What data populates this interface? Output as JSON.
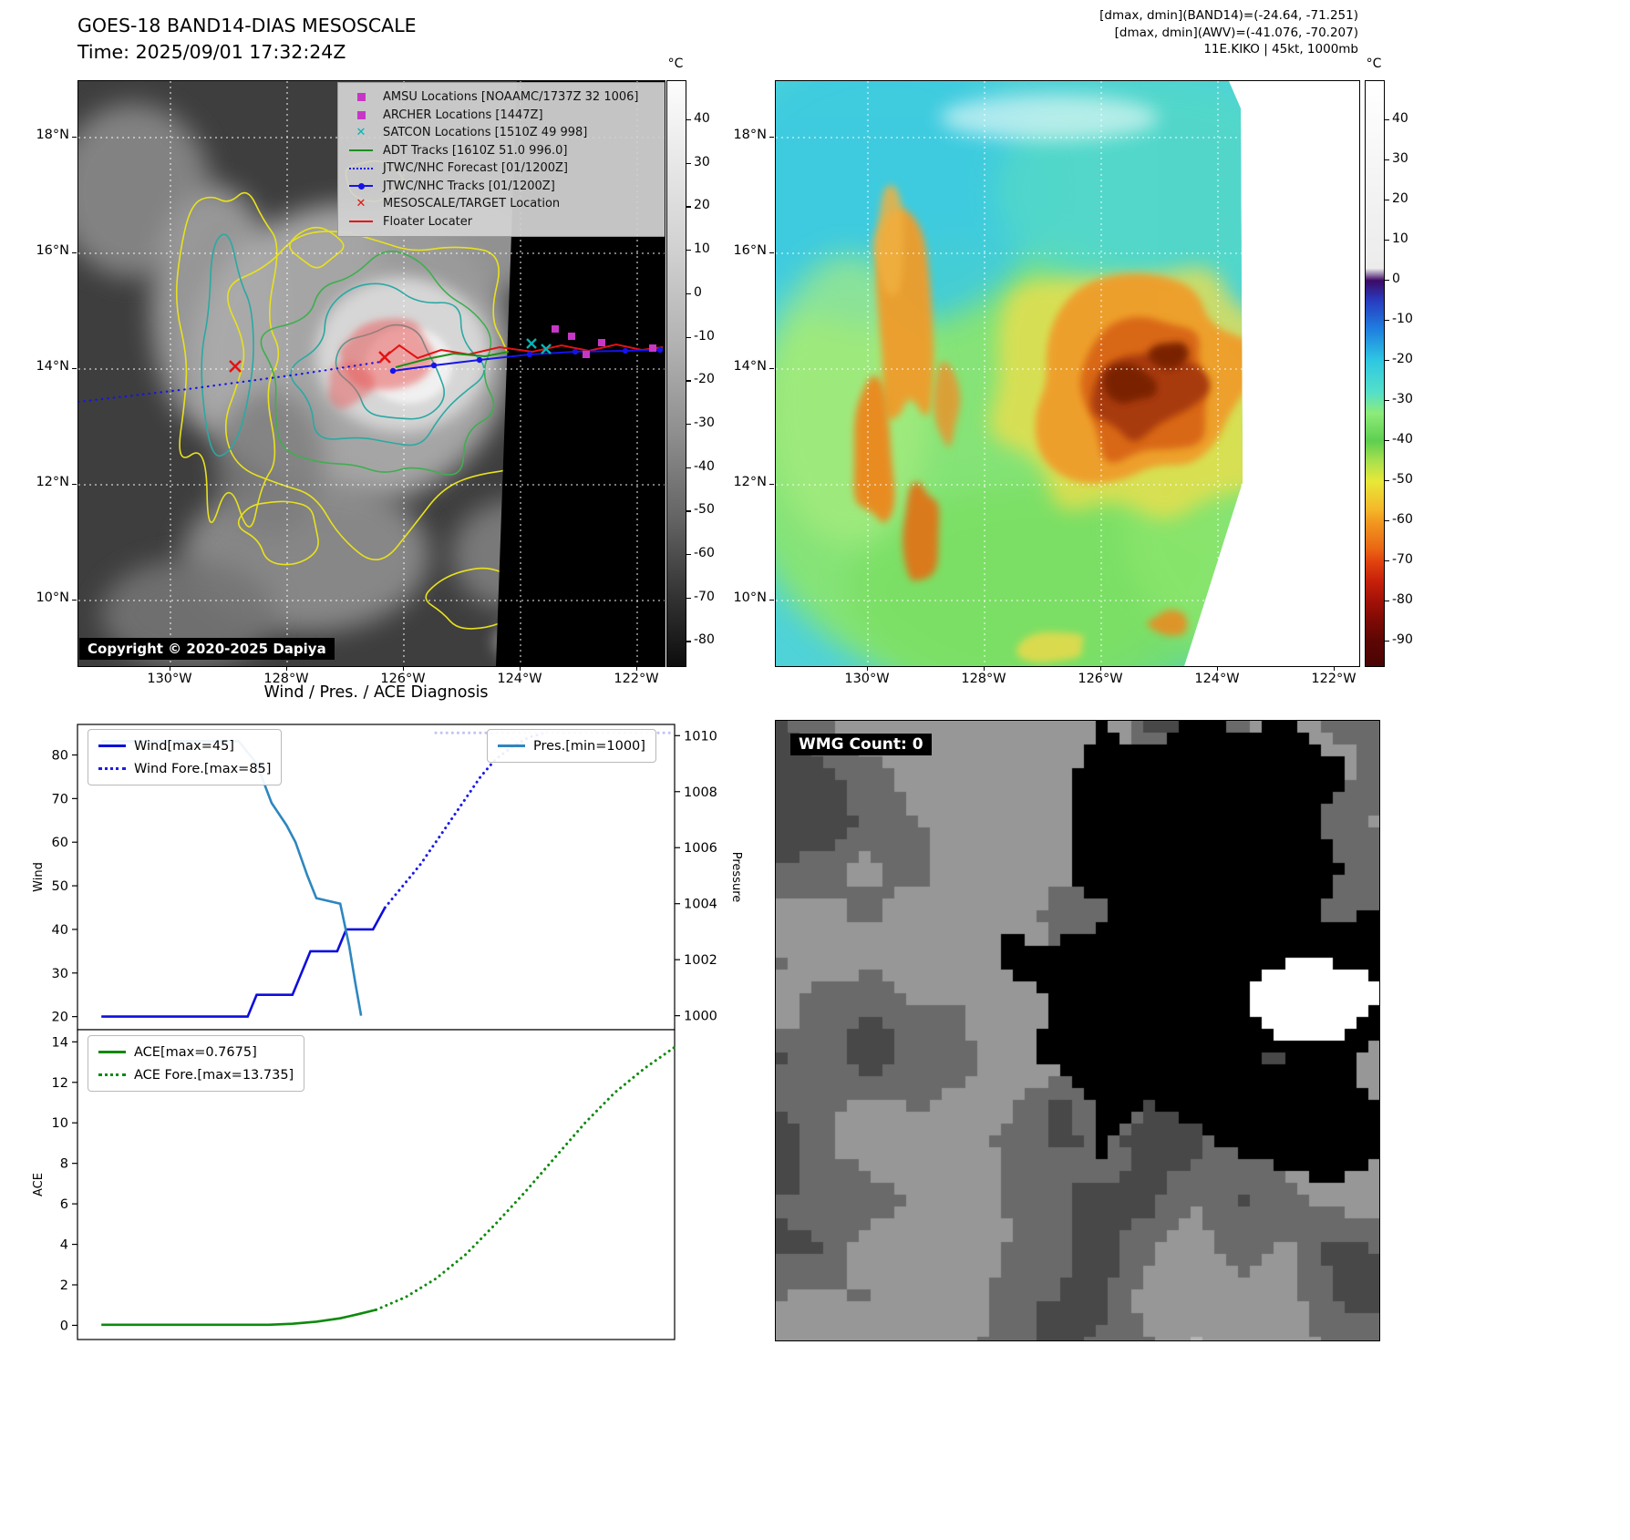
{
  "panel_tl": {
    "title": "GOES-18 BAND14-DIAS MESOSCALE",
    "subtitle": "Time: 2025/09/01 17:32:24Z",
    "copyright": "Copyright © 2020-2025 Dapiya",
    "colorbar_unit": "°C",
    "colorbar_ticks": [
      40,
      30,
      20,
      10,
      0,
      -10,
      -20,
      -30,
      -40,
      -50,
      -60,
      -70,
      -80
    ],
    "lat_ticks": [
      "18°N",
      "16°N",
      "14°N",
      "12°N",
      "10°N"
    ],
    "lon_ticks": [
      "130°W",
      "128°W",
      "126°W",
      "124°W",
      "122°W"
    ],
    "legend_items": [
      {
        "label": "AMSU Locations [NOAAMC/1737Z 32 1006]",
        "marker": "square",
        "color": "#c637c6"
      },
      {
        "label": "ARCHER Locations [1447Z]",
        "marker": "square",
        "color": "#c637c6"
      },
      {
        "label": "SATCON Locations [1510Z 49 998]",
        "marker": "x",
        "color": "#00b5b5"
      },
      {
        "label": "ADT Tracks [1610Z 51.0 996.0]",
        "marker": "line",
        "color": "#1c8f1c"
      },
      {
        "label": "JTWC/NHC Forecast [01/1200Z]",
        "marker": "dotted",
        "color": "#1414e8"
      },
      {
        "label": "JTWC/NHC Tracks [01/1200Z]",
        "marker": "line-dot",
        "color": "#1414e8"
      },
      {
        "label": "MESOSCALE/TARGET Location",
        "marker": "x",
        "color": "#e31212"
      },
      {
        "label": "Floater Locater",
        "marker": "line",
        "color": "#e31212"
      }
    ]
  },
  "panel_tr": {
    "info_lines": [
      "[dmax, dmin](BAND14)=(-24.64, -71.251)",
      "[dmax, dmin](AWV)=(-41.076, -70.207)",
      "11E.KIKO | 45kt, 1000mb"
    ],
    "colorbar_unit": "°C",
    "colorbar_ticks": [
      40,
      30,
      20,
      10,
      0,
      -10,
      -20,
      -30,
      -40,
      -50,
      -60,
      -70,
      -80,
      -90
    ],
    "lat_ticks": [
      "18°N",
      "16°N",
      "14°N",
      "12°N",
      "10°N"
    ],
    "lon_ticks": [
      "130°W",
      "128°W",
      "126°W",
      "124°W",
      "122°W"
    ]
  },
  "diagnosis": {
    "title": "Wind / Pres. / ACE Diagnosis"
  },
  "chart_data": [
    {
      "type": "line",
      "title": "Wind / Pres. / ACE Diagnosis",
      "xlabel": "",
      "ylabel_left": "Wind",
      "ylabel_right": "Pressure",
      "ylim_left": [
        17,
        87
      ],
      "ylim_right": [
        999.5,
        1010.4
      ],
      "yticks_left": [
        20,
        30,
        40,
        50,
        60,
        70,
        80
      ],
      "yticks_right": [
        1000,
        1002,
        1004,
        1006,
        1008,
        1010
      ],
      "x_range": [
        0,
        1
      ],
      "legend_position": "upper left / upper right",
      "grid": false,
      "series": [
        {
          "name": "Wind[max=45]",
          "axis": "left",
          "style": "solid",
          "color": "#0d0ddd",
          "points": [
            [
              0.04,
              20
            ],
            [
              0.285,
              20
            ],
            [
              0.3,
              25
            ],
            [
              0.36,
              25
            ],
            [
              0.39,
              35
            ],
            [
              0.435,
              35
            ],
            [
              0.45,
              40
            ],
            [
              0.495,
              40
            ],
            [
              0.515,
              45
            ]
          ]
        },
        {
          "name": "Wind Fore.[max=85]",
          "axis": "left",
          "style": "dotted",
          "color": "#1b1be8",
          "points": [
            [
              0.515,
              45
            ],
            [
              0.545,
              50
            ],
            [
              0.575,
              55
            ],
            [
              0.61,
              62
            ],
            [
              0.645,
              69
            ],
            [
              0.675,
              75
            ],
            [
              0.7,
              79
            ],
            [
              0.73,
              82
            ],
            [
              0.755,
              84
            ],
            [
              0.78,
              85
            ]
          ]
        },
        {
          "name": "Pres.[min=1000]",
          "axis": "right",
          "style": "solid",
          "color": "#2e86bf",
          "points": [
            [
              0.04,
              1009.8
            ],
            [
              0.27,
              1009.8
            ],
            [
              0.3,
              1009.0
            ],
            [
              0.325,
              1007.6
            ],
            [
              0.35,
              1006.8
            ],
            [
              0.365,
              1006.2
            ],
            [
              0.385,
              1005.0
            ],
            [
              0.4,
              1004.2
            ],
            [
              0.44,
              1004.0
            ],
            [
              0.455,
              1002.5
            ],
            [
              0.465,
              1001.2
            ],
            [
              0.475,
              1000.0
            ]
          ]
        },
        {
          "name": "Pres. Fore.",
          "axis": "right",
          "style": "dotted",
          "color": "#c3c3ef",
          "points": [
            [
              0.6,
              1010.1
            ],
            [
              1.0,
              1010.1
            ]
          ]
        }
      ]
    },
    {
      "type": "line",
      "title": "",
      "xlabel": "",
      "ylabel_left": "ACE",
      "ylim_left": [
        -0.7,
        14.6
      ],
      "yticks_left": [
        0,
        2,
        4,
        6,
        8,
        10,
        12,
        14
      ],
      "x_range": [
        0,
        1
      ],
      "legend_position": "upper left",
      "grid": false,
      "series": [
        {
          "name": "ACE[max=0.7675]",
          "axis": "left",
          "style": "solid",
          "color": "#0e8a0e",
          "points": [
            [
              0.04,
              0.03
            ],
            [
              0.32,
              0.03
            ],
            [
              0.36,
              0.08
            ],
            [
              0.4,
              0.18
            ],
            [
              0.44,
              0.35
            ],
            [
              0.47,
              0.55
            ],
            [
              0.5,
              0.7675
            ]
          ]
        },
        {
          "name": "ACE Fore.[max=13.735]",
          "axis": "left",
          "style": "dotted",
          "color": "#0e8a0e",
          "points": [
            [
              0.5,
              0.7675
            ],
            [
              0.55,
              1.4
            ],
            [
              0.6,
              2.3
            ],
            [
              0.65,
              3.5
            ],
            [
              0.7,
              5.0
            ],
            [
              0.75,
              6.6
            ],
            [
              0.8,
              8.3
            ],
            [
              0.85,
              10.0
            ],
            [
              0.9,
              11.5
            ],
            [
              0.95,
              12.7
            ],
            [
              1.0,
              13.735
            ]
          ]
        }
      ]
    }
  ],
  "panel_br": {
    "wmg_label": "WMG Count: 0"
  }
}
